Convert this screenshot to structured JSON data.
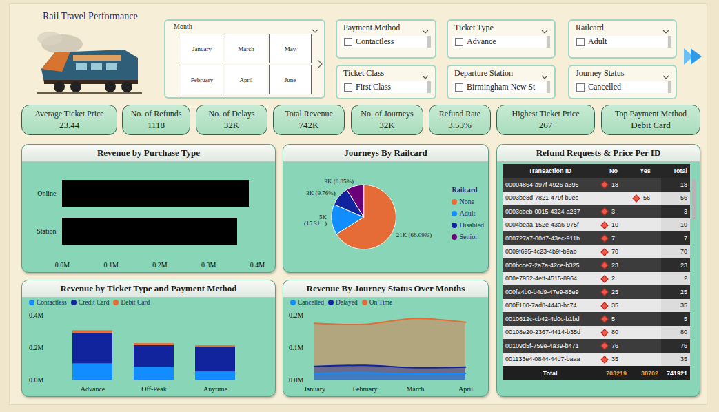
{
  "header": {
    "title": "Rail Travel Performance"
  },
  "month_slicer": {
    "title": "Month",
    "options": [
      "January",
      "February",
      "March",
      "April",
      "May",
      "June"
    ]
  },
  "filters": [
    {
      "title": "Payment Method",
      "item": "Contactless"
    },
    {
      "title": "Ticket Type",
      "item": "Advance"
    },
    {
      "title": "Railcard",
      "item": "Adult"
    },
    {
      "title": "Ticket Class",
      "item": "First Class"
    },
    {
      "title": "Departure Station",
      "item": "Birmingham New St"
    },
    {
      "title": "Journey Status",
      "item": "Cancelled"
    }
  ],
  "kpis": [
    {
      "label": "Average Ticket Price",
      "value": 23.44
    },
    {
      "label": "No. of Refunds",
      "value": 1118
    },
    {
      "label": "No. of Delays",
      "value": "32K"
    },
    {
      "label": "Total Revenue",
      "value": "742K"
    },
    {
      "label": "No. of Journeys",
      "value": "32K"
    },
    {
      "label": "Refund Rate",
      "value": "3.53%"
    },
    {
      "label": "Highest Ticket Price",
      "value": 267
    },
    {
      "label": "Top Payment Method",
      "value": "Debit Card"
    }
  ],
  "chart_data": [
    {
      "type": "bar",
      "title": "Revenue by Purchase Type",
      "orientation": "horizontal",
      "categories": [
        "Online",
        "Station"
      ],
      "values": [
        0.383,
        0.359
      ],
      "color": "#000000",
      "xlim": [
        0,
        0.4
      ],
      "xticks": [
        {
          "value": 0,
          "label": "0.0M"
        },
        {
          "value": 0.1,
          "label": "0.1M"
        },
        {
          "value": 0.2,
          "label": "0.2M"
        },
        {
          "value": 0.3,
          "label": "0.3M"
        },
        {
          "value": 0.4,
          "label": "0.4M"
        }
      ],
      "grid": false
    },
    {
      "type": "pie",
      "title": "Journeys By Railcard",
      "legend_title": "Railcard",
      "categories": [
        "None",
        "Adult",
        "Disabled",
        "Senior"
      ],
      "values": [
        66.09,
        15.31,
        9.76,
        8.85
      ],
      "value_labels": [
        "21K (66.09%)",
        "5K (15.31...)",
        "3K (9.76%)",
        "3K (8.85%)"
      ],
      "colors": [
        "#e66c37",
        "#118dff",
        "#12239e",
        "#6b007b"
      ],
      "data_labels": true,
      "legend": "right"
    },
    {
      "type": "bar",
      "title": "Revenue by Ticket Type and Payment Method",
      "stacked": true,
      "legend": "top-left",
      "categories": [
        "Advance",
        "Off-Peak",
        "Anytime"
      ],
      "series": [
        {
          "name": "Contactless",
          "color": "#118dff",
          "values": [
            0.1,
            0.08,
            0.05
          ]
        },
        {
          "name": "Credit Card",
          "color": "#12239e",
          "values": [
            0.19,
            0.133,
            0.15
          ]
        },
        {
          "name": "Debit Card",
          "color": "#e66c37",
          "values": [
            0.015,
            0.012,
            0.012
          ]
        }
      ],
      "ylim": [
        0,
        0.4
      ],
      "yticks": [
        {
          "value": 0,
          "label": "0.0M"
        },
        {
          "value": 0.2,
          "label": "0.2M"
        },
        {
          "value": 0.4,
          "label": "0.4M"
        }
      ],
      "grid": false
    },
    {
      "type": "area",
      "title": "Revenue By Journey Status Over Months",
      "stacked": false,
      "legend": "top-left",
      "categories": [
        "January",
        "February",
        "March",
        "April"
      ],
      "series": [
        {
          "name": "Cancelled",
          "color": "#118dff",
          "values": [
            0.02,
            0.022,
            0.018,
            0.02
          ]
        },
        {
          "name": "Delayed",
          "color": "#12239e",
          "values": [
            0.042,
            0.045,
            0.038,
            0.04
          ]
        },
        {
          "name": "On Time",
          "color": "#e66c37",
          "values": [
            0.175,
            0.172,
            0.19,
            0.178
          ]
        }
      ],
      "ylim": [
        0,
        0.2
      ],
      "yticks": [
        {
          "value": 0,
          "label": "0.0M"
        },
        {
          "value": 0.1,
          "label": "0.1M"
        },
        {
          "value": 0.2,
          "label": "0.2M"
        }
      ],
      "grid": false
    }
  ],
  "table": {
    "title": "Refund Requests & Price Per ID",
    "columns": [
      "Transaction ID",
      "No",
      "Yes",
      "Total"
    ],
    "rows": [
      [
        "00004864-a97f-4926-a395",
        18,
        null,
        18
      ],
      [
        "0003be8d-7821-479f-b9ec",
        null,
        56,
        56
      ],
      [
        "0003cbeb-0015-4324-a237",
        3,
        null,
        3
      ],
      [
        "0004beaa-152e-43a6-975f",
        10,
        null,
        10
      ],
      [
        "000727a7-00d7-43ec-911b",
        7,
        null,
        7
      ],
      [
        "0009f695-4c23-4b9f-b9ab",
        70,
        null,
        70
      ],
      [
        "000bcce7-2a7a-42ce-b325",
        23,
        null,
        23
      ],
      [
        "000e7952-4eff-4515-8964",
        2,
        null,
        2
      ],
      [
        "000fa4b0-b4d9-47e9-85e9",
        25,
        null,
        25
      ],
      [
        "000ff180-7ad8-4443-bc74",
        35,
        null,
        35
      ],
      [
        "0010612c-cb42-4d0c-b1bd",
        5,
        null,
        5
      ],
      [
        "00108e20-2367-4414-b35d",
        80,
        null,
        80
      ],
      [
        "00109d5f-759e-4a39-b471",
        76,
        null,
        76
      ],
      [
        "001133e4-0844-44d7-baaa",
        35,
        null,
        35
      ]
    ],
    "total_row": [
      "Total",
      703219,
      38702,
      741921
    ]
  }
}
